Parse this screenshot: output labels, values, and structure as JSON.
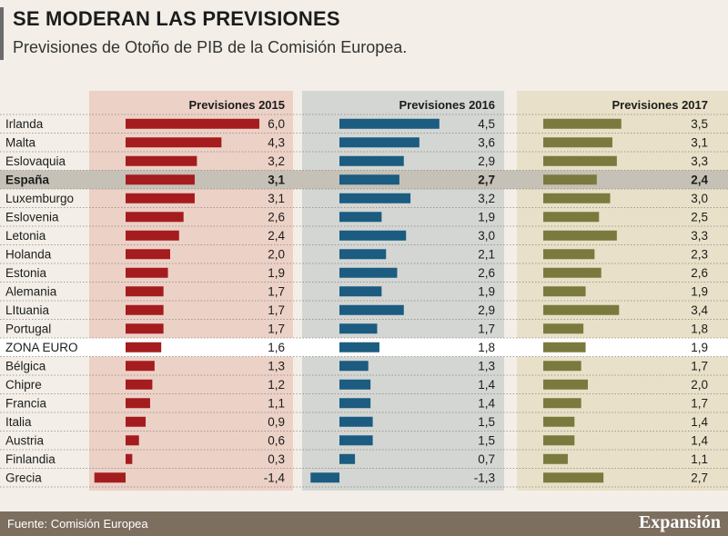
{
  "header": {
    "title": "SE MODERAN LAS PREVISIONES",
    "subtitle": "Previsiones de Otoño de PIB de la Comisión Europea."
  },
  "footer": {
    "source": "Fuente: Comisión Europea",
    "brand": "Expansión"
  },
  "colors": {
    "s2015": "#a51c1e",
    "s2016": "#1b5c80",
    "s2017": "#7b7a3e",
    "bg2015": "#ecd1c7",
    "bg2016": "#d3d6d3",
    "bg2017": "#e8e0c8",
    "highlight": "#c6c1b6",
    "euro": "#ffffff"
  },
  "chart_data": {
    "type": "bar",
    "title": "SE MODERAN LAS PREVISIONES",
    "highlight_row": "España",
    "euro_row": "ZONA EURO",
    "categories": [
      "Irlanda",
      "Malta",
      "Eslovaquia",
      "España",
      "Luxemburgo",
      "Eslovenia",
      "Letonia",
      "Holanda",
      "Estonia",
      "Alemania",
      "LItuania",
      "Portugal",
      "ZONA EURO",
      "Bélgica",
      "Chipre",
      "Francia",
      "Italia",
      "Austria",
      "Finlandia",
      "Grecia"
    ],
    "series": [
      {
        "name": "Previsiones 2015",
        "values": [
          6.0,
          4.3,
          3.2,
          3.1,
          3.1,
          2.6,
          2.4,
          2.0,
          1.9,
          1.7,
          1.7,
          1.7,
          1.6,
          1.3,
          1.2,
          1.1,
          0.9,
          0.6,
          0.3,
          -1.4
        ],
        "labels": [
          "6,0",
          "4,3",
          "3,2",
          "3,1",
          "3,1",
          "2,6",
          "2,4",
          "2,0",
          "1,9",
          "1,7",
          "1,7",
          "1,7",
          "1,6",
          "1,3",
          "1,2",
          "1,1",
          "0,9",
          "0,6",
          "0,3",
          "-1,4"
        ]
      },
      {
        "name": "Previsiones 2016",
        "values": [
          4.5,
          3.6,
          2.9,
          2.7,
          3.2,
          1.9,
          3.0,
          2.1,
          2.6,
          1.9,
          2.9,
          1.7,
          1.8,
          1.3,
          1.4,
          1.4,
          1.5,
          1.5,
          0.7,
          -1.3
        ],
        "labels": [
          "4,5",
          "3,6",
          "2,9",
          "2,7",
          "3,2",
          "1,9",
          "3,0",
          "2,1",
          "2,6",
          "1,9",
          "2,9",
          "1,7",
          "1,8",
          "1,3",
          "1,4",
          "1,4",
          "1,5",
          "1,5",
          "0,7",
          "-1,3"
        ]
      },
      {
        "name": "Previsiones 2017",
        "values": [
          3.5,
          3.1,
          3.3,
          2.4,
          3.0,
          2.5,
          3.3,
          2.3,
          2.6,
          1.9,
          3.4,
          1.8,
          1.9,
          1.7,
          2.0,
          1.7,
          1.4,
          1.4,
          1.1,
          2.7
        ],
        "labels": [
          "3,5",
          "3,1",
          "3,3",
          "2,4",
          "3,0",
          "2,5",
          "3,3",
          "2,3",
          "2,6",
          "1,9",
          "3,4",
          "1,8",
          "1,9",
          "1,7",
          "2,0",
          "1,7",
          "1,4",
          "1,4",
          "1,1",
          "2,7"
        ]
      }
    ]
  }
}
